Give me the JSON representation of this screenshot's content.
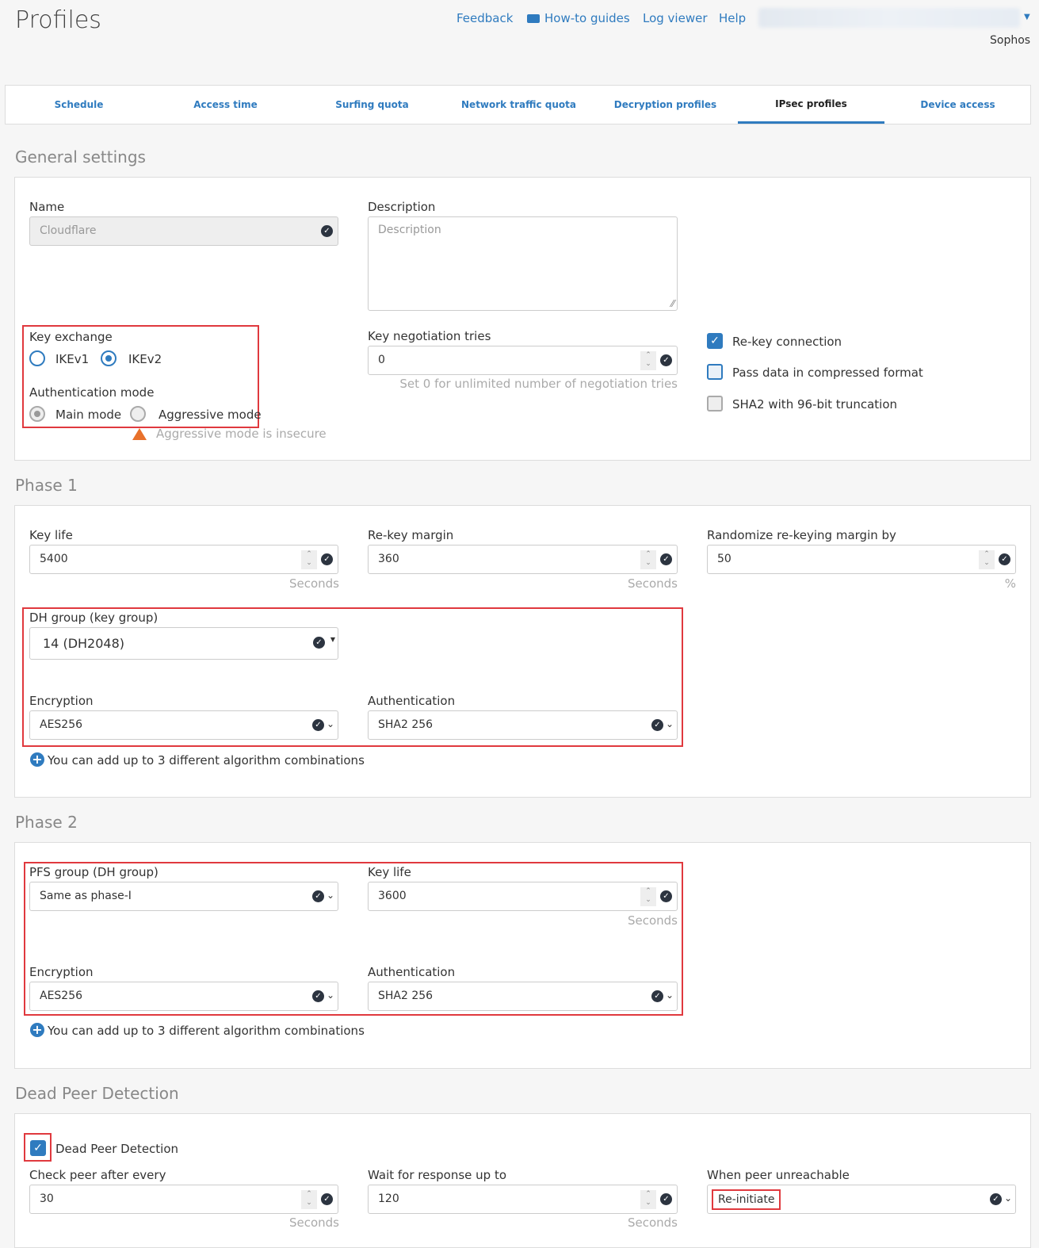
{
  "header": {
    "title": "Profiles",
    "links": [
      "Feedback",
      "How-to guides",
      "Log viewer",
      "Help"
    ],
    "org": "Sophos"
  },
  "tabs": [
    {
      "label": "Schedule"
    },
    {
      "label": "Access time"
    },
    {
      "label": "Surfing quota"
    },
    {
      "label": "Network traffic quota"
    },
    {
      "label": "Decryption profiles"
    },
    {
      "label": "IPsec profiles",
      "active": true
    },
    {
      "label": "Device access"
    }
  ],
  "general": {
    "heading": "General settings",
    "name_label": "Name",
    "name_value": "Cloudflare",
    "desc_label": "Description",
    "desc_placeholder": "Description",
    "key_exchange_label": "Key exchange",
    "ikev1": "IKEv1",
    "ikev2": "IKEv2",
    "key_exchange_selected": "IKEv2",
    "auth_mode_label": "Authentication mode",
    "main_mode": "Main mode",
    "aggressive_mode": "Aggressive mode",
    "auth_mode_selected": "Main mode",
    "warning": "Aggressive mode is insecure",
    "tries_label": "Key negotiation tries",
    "tries_value": "0",
    "tries_hint": "Set 0 for unlimited number of negotiation tries",
    "checkboxes": [
      {
        "label": "Re-key connection",
        "checked": true
      },
      {
        "label": "Pass data in compressed format",
        "checked": false
      },
      {
        "label": "SHA2 with 96-bit truncation",
        "checked": false
      }
    ]
  },
  "phase1": {
    "heading": "Phase 1",
    "key_life_label": "Key life",
    "key_life": "5400",
    "rekey_label": "Re-key margin",
    "rekey": "360",
    "random_label": "Randomize re-keying margin by",
    "random": "50",
    "seconds": "Seconds",
    "percent": "%",
    "dh_label": "DH group (key group)",
    "dh": "14 (DH2048)",
    "enc_label": "Encryption",
    "enc": "AES256",
    "auth_label": "Authentication",
    "auth": "SHA2 256",
    "add": "You can add up to 3 different algorithm combinations"
  },
  "phase2": {
    "heading": "Phase 2",
    "pfs_label": "PFS group (DH group)",
    "pfs": "Same as phase-I",
    "key_life_label": "Key life",
    "key_life": "3600",
    "seconds": "Seconds",
    "enc_label": "Encryption",
    "enc": "AES256",
    "auth_label": "Authentication",
    "auth": "SHA2 256",
    "add": "You can add up to 3 different algorithm combinations"
  },
  "dpd": {
    "heading": "Dead Peer Detection",
    "checkbox": "Dead Peer Detection",
    "checked": true,
    "check_label": "Check peer after every",
    "check": "30",
    "wait_label": "Wait for response up to",
    "wait": "120",
    "seconds": "Seconds",
    "unreach_label": "When peer unreachable",
    "unreach": "Re-initiate"
  }
}
